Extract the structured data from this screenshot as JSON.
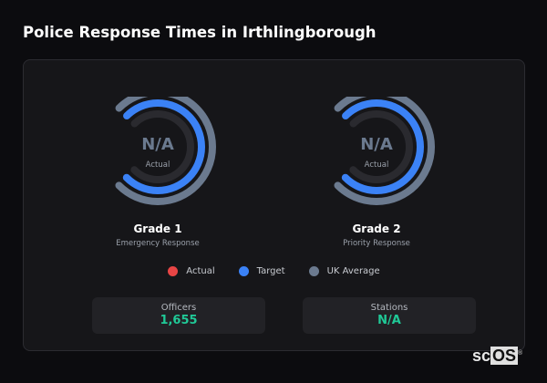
{
  "title": "Police Response Times in Irthlingborough",
  "gauges": [
    {
      "value": "N/A",
      "sub": "Actual",
      "name": "Grade 1",
      "desc": "Emergency Response",
      "actual_fraction": 0,
      "target_fraction": 1,
      "uk_average_fraction": 1
    },
    {
      "value": "N/A",
      "sub": "Actual",
      "name": "Grade 2",
      "desc": "Priority Response",
      "actual_fraction": 0,
      "target_fraction": 1,
      "uk_average_fraction": 1
    }
  ],
  "legend": [
    {
      "label": "Actual",
      "color": "#e84545"
    },
    {
      "label": "Target",
      "color": "#3b82f6"
    },
    {
      "label": "UK Average",
      "color": "#6b7a8f"
    }
  ],
  "stats": [
    {
      "label": "Officers",
      "value": "1,655"
    },
    {
      "label": "Stations",
      "value": "N/A"
    }
  ],
  "logo": {
    "text_sc": "sc",
    "text_os": "OS",
    "mark": "®"
  }
}
